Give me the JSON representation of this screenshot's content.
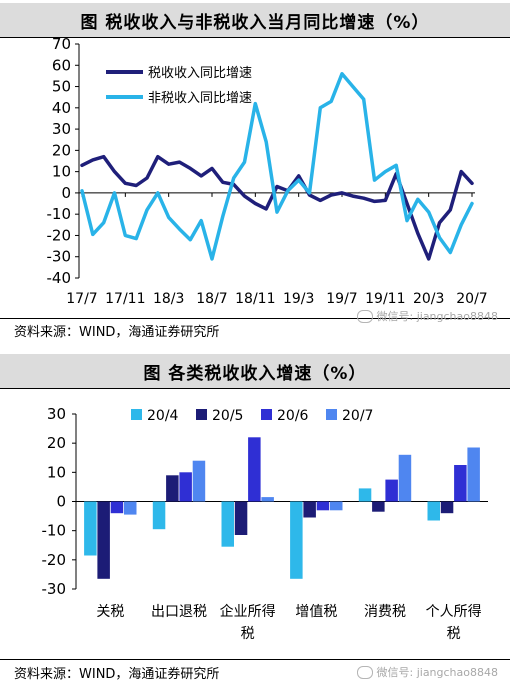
{
  "charts": [
    {
      "title": "图  税收收入与非税收入当月同比增速（%）",
      "source": "资料来源：WIND，海通证券研究所",
      "watermark": "微信号: jiangchao8848"
    },
    {
      "title": "图  各类税收收入增速（%）",
      "source": "资料来源：WIND，海通证券研究所",
      "watermark": "微信号: jiangchao8848"
    }
  ],
  "chart_data": [
    {
      "type": "line",
      "title": "税收收入与非税收入当月同比增速（%）",
      "x_tick_labels": [
        "17/7",
        "17/11",
        "18/3",
        "18/7",
        "18/11",
        "19/3",
        "19/7",
        "19/11",
        "20/3",
        "20/7"
      ],
      "x": [
        "17/7",
        "17/8",
        "17/9",
        "17/10",
        "17/11",
        "17/12",
        "18/1",
        "18/2",
        "18/3",
        "18/4",
        "18/5",
        "18/6",
        "18/7",
        "18/8",
        "18/9",
        "18/10",
        "18/11",
        "18/12",
        "19/1",
        "19/2",
        "19/3",
        "19/4",
        "19/5",
        "19/6",
        "19/7",
        "19/8",
        "19/9",
        "19/10",
        "19/11",
        "19/12",
        "20/1",
        "20/2",
        "20/3",
        "20/4",
        "20/5",
        "20/6",
        "20/7"
      ],
      "ylim": [
        -40,
        70
      ],
      "yticks": [
        -40,
        -30,
        -20,
        -10,
        0,
        10,
        20,
        30,
        40,
        50,
        60,
        70
      ],
      "legend_position": "top-left",
      "series": [
        {
          "name": "税收收入同比增速",
          "color": "#1f1f7a",
          "values": [
            13,
            15.5,
            17,
            10,
            4.5,
            3.5,
            7,
            17,
            13.5,
            14.5,
            11.5,
            8,
            11.5,
            5,
            4,
            -1.5,
            -5,
            -7.5,
            3,
            1,
            8,
            -1,
            -3.5,
            -1,
            0,
            -1.5,
            -2.5,
            -4,
            -3.5,
            9,
            -5,
            -19,
            -31,
            -14,
            -8,
            10,
            4.5
          ]
        },
        {
          "name": "非税收入同比增速",
          "color": "#29b3e8",
          "values": [
            1,
            -19.5,
            -14,
            0,
            -20,
            -21.5,
            -8,
            0,
            -11.5,
            -17,
            -22,
            -13,
            -31,
            -11,
            7,
            14.5,
            42,
            24,
            -9,
            1,
            6,
            0,
            40,
            43,
            56,
            50,
            44,
            6,
            10,
            13,
            -13,
            -3,
            -9,
            -21,
            -28,
            -15,
            -5
          ]
        }
      ]
    },
    {
      "type": "bar",
      "title": "各类税收收入增速（%）",
      "categories": [
        "关税",
        "出口退税",
        "企业所得税",
        "增值税",
        "消费税",
        "个人所得税"
      ],
      "ylim": [
        -30,
        30
      ],
      "yticks": [
        -30,
        -20,
        -10,
        0,
        10,
        20,
        30
      ],
      "legend_position": "top",
      "series": [
        {
          "name": "20/4",
          "color": "#2eb8ea",
          "values": [
            -18.5,
            -9.5,
            -15.5,
            -26.5,
            4.5,
            -6.5
          ]
        },
        {
          "name": "20/5",
          "color": "#1c1c76",
          "values": [
            -26.5,
            9,
            -11.5,
            -5.5,
            -3.5,
            -4
          ]
        },
        {
          "name": "20/6",
          "color": "#2f2fd4",
          "values": [
            -4,
            10,
            22,
            -3,
            7.5,
            12.5
          ]
        },
        {
          "name": "20/7",
          "color": "#4f86f0",
          "values": [
            -4.5,
            14,
            1.5,
            -3,
            16,
            18.5
          ]
        }
      ]
    }
  ]
}
